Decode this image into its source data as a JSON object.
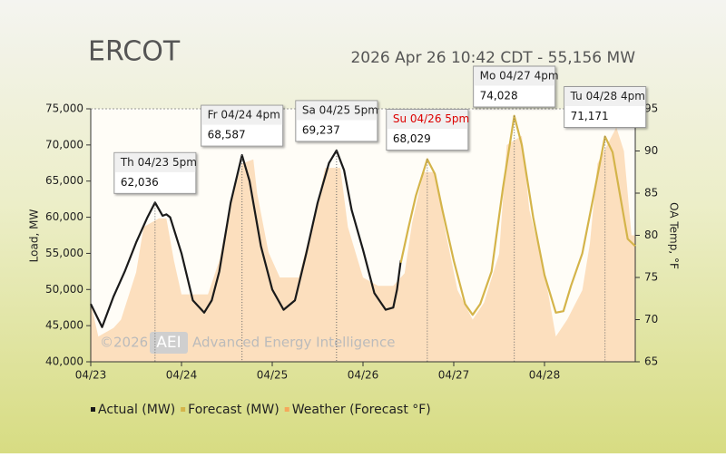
{
  "chart_data": {
    "type": "line",
    "title": "ERCOT",
    "subtitle": "2026 Apr 26 10:42 CDT - 55,156 MW",
    "y_label": "Load, MW",
    "y2_label": "OA Temp, °F",
    "xlim": [
      0,
      144
    ],
    "xticks": [
      {
        "value": 0,
        "label": "04/23"
      },
      {
        "value": 24,
        "label": "04/24"
      },
      {
        "value": 48,
        "label": "04/25"
      },
      {
        "value": 72,
        "label": "04/26"
      },
      {
        "value": 96,
        "label": "04/27"
      },
      {
        "value": 120,
        "label": "04/28"
      }
    ],
    "ylim": [
      40000,
      75000
    ],
    "yticks": [
      {
        "value": 40000,
        "label": "40,000"
      },
      {
        "value": 45000,
        "label": "45,000"
      },
      {
        "value": 50000,
        "label": "50,000"
      },
      {
        "value": 55000,
        "label": "55,000"
      },
      {
        "value": 60000,
        "label": "60,000"
      },
      {
        "value": 65000,
        "label": "65,000"
      },
      {
        "value": 70000,
        "label": "70,000"
      },
      {
        "value": 75000,
        "label": "75,000"
      }
    ],
    "y2lim": [
      65,
      95
    ],
    "y2ticks": [
      65,
      70,
      75,
      80,
      85,
      90,
      95
    ],
    "series": [
      {
        "name": "Actual (MW)",
        "color": "#1a1a1a",
        "kind": "line",
        "x": [
          0,
          3,
          6,
          9,
          12,
          15,
          17,
          19,
          20,
          21,
          24,
          27,
          30,
          32,
          34,
          37,
          40,
          42,
          45,
          48,
          51,
          54,
          57,
          60,
          63,
          65,
          67,
          69,
          72,
          75,
          78,
          80,
          81,
          82
        ],
        "values": [
          48000,
          44800,
          49000,
          52500,
          56500,
          60000,
          62036,
          60200,
          60400,
          60000,
          55000,
          48500,
          46800,
          48500,
          52500,
          62000,
          68587,
          65000,
          56000,
          50000,
          47200,
          48500,
          55000,
          62000,
          67500,
          69237,
          66500,
          61000,
          55500,
          49500,
          47200,
          47500,
          50000,
          54000
        ]
      },
      {
        "name": "Forecast (MW)",
        "color": "#d4b44a",
        "kind": "line",
        "x": [
          82,
          84,
          86,
          89,
          91,
          93,
          96,
          99,
          101,
          103,
          106,
          109,
          112,
          114,
          117,
          120,
          123,
          125,
          127,
          130,
          133,
          136,
          138,
          140,
          142,
          144
        ],
        "values": [
          53700,
          58500,
          63000,
          68029,
          66000,
          61000,
          54000,
          48000,
          46500,
          48000,
          52500,
          64000,
          74028,
          70000,
          60000,
          52000,
          46800,
          47000,
          50500,
          55000,
          63000,
          71171,
          69000,
          63000,
          57000,
          56000
        ]
      },
      {
        "name": "Weather (Forecast °F)",
        "color": "#fbd9b4",
        "kind": "area",
        "axis": "y2",
        "x": [
          0,
          2,
          6,
          8,
          12,
          14,
          18,
          20,
          22,
          24,
          31,
          34,
          37,
          40,
          43,
          44,
          47,
          50,
          55,
          59,
          62,
          66,
          68,
          72,
          76,
          80,
          83,
          85,
          88,
          91,
          94,
          97,
          101,
          104,
          108,
          110,
          114,
          116,
          120,
          123,
          126,
          130,
          132,
          134,
          139,
          141,
          143,
          144
        ],
        "values": [
          72,
          68,
          69,
          70,
          75.6,
          81,
          82,
          82,
          77,
          73,
          73,
          77,
          84,
          88.5,
          89,
          85,
          78,
          75,
          75,
          82,
          88,
          88,
          81,
          75,
          74,
          74,
          75.5,
          81.5,
          87.5,
          87.5,
          80,
          73.5,
          70,
          72,
          77.8,
          90.7,
          91.8,
          83,
          75.6,
          68,
          70,
          73.5,
          79,
          88.5,
          92.8,
          90,
          80,
          80
        ]
      }
    ],
    "annotations": [
      {
        "label": "Th 04/23 5pm",
        "x": 17,
        "value": 62036,
        "value_label": "62,036",
        "color": "#222222"
      },
      {
        "label": "Fr 04/24 4pm",
        "x": 40,
        "value": 68587,
        "value_label": "68,587",
        "color": "#222222"
      },
      {
        "label": "Sa 04/25 5pm",
        "x": 65,
        "value": 69237,
        "value_label": "69,237",
        "color": "#222222"
      },
      {
        "label": "Su 04/26 5pm",
        "x": 89,
        "value": 68029,
        "value_label": "68,029",
        "color": "#dd0000"
      },
      {
        "label": "Mo 04/27 4pm",
        "x": 112,
        "value": 74028,
        "value_label": "74,028",
        "color": "#222222"
      },
      {
        "label": "Tu 04/28 4pm",
        "x": 136,
        "value": 71171,
        "value_label": "71,171",
        "color": "#222222"
      }
    ],
    "watermark": [
      "©2026",
      "AEI",
      "Advanced Energy Intelligence"
    ],
    "grid": false
  }
}
